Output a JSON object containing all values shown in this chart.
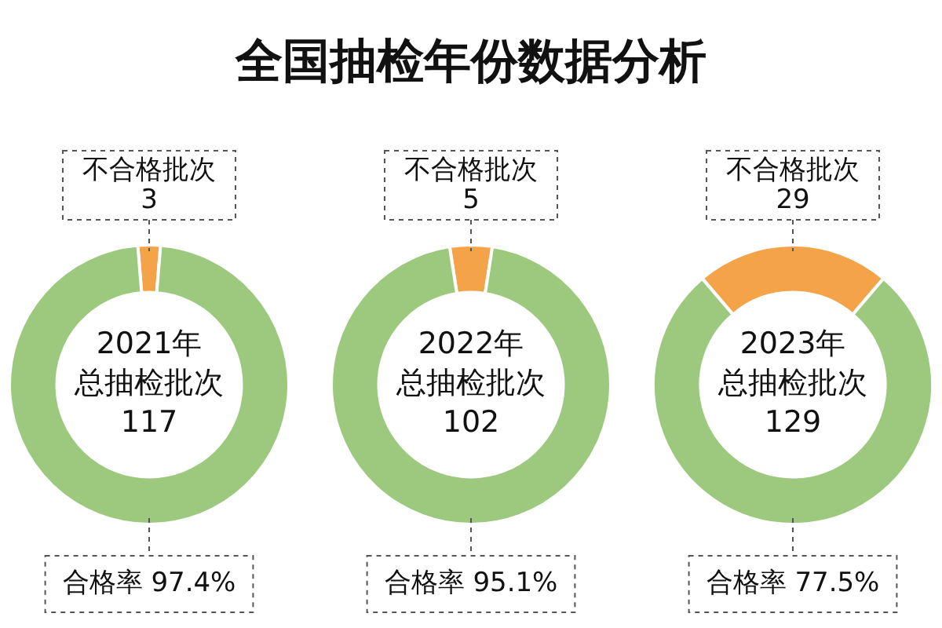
{
  "chart_data": [
    {
      "type": "other",
      "title": "全国抽检年份数据分析"
    },
    {
      "type": "donut",
      "subtitle": "2021年",
      "annotations": [
        "总抽检批次",
        "117",
        "3"
      ],
      "categories": [
        "不合格批次",
        "合格率"
      ],
      "values": [
        2.6,
        97.4
      ],
      "colors": [
        "#f4a349",
        "#9dc97e"
      ],
      "value_labels": [
        null,
        "97.4%"
      ]
    },
    {
      "type": "donut",
      "subtitle": "2022年",
      "annotations": [
        "总抽检批次",
        "102",
        "5"
      ],
      "categories": [
        "不合格批次",
        "合格率"
      ],
      "values": [
        4.9,
        95.1
      ],
      "colors": [
        "#f4a349",
        "#9dc97e"
      ],
      "value_labels": [
        null,
        "95.1%"
      ]
    },
    {
      "type": "donut",
      "subtitle": "2023年",
      "annotations": [
        "总抽检批次",
        "129",
        "29"
      ],
      "categories": [
        "不合格批次",
        "合格率"
      ],
      "values": [
        22.5,
        77.5
      ],
      "colors": [
        "#f4a349",
        "#9dc97e"
      ],
      "value_labels": [
        null,
        "77.5%"
      ]
    }
  ]
}
